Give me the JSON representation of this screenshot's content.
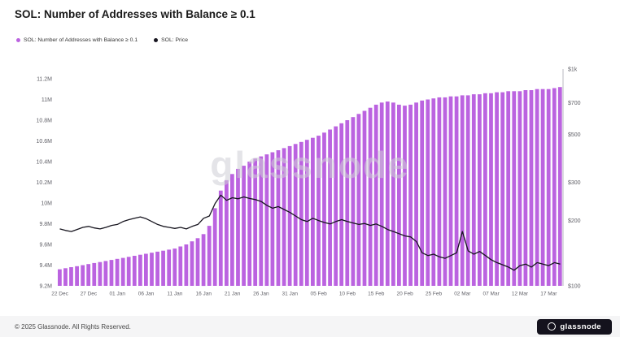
{
  "page": {
    "title": "SOL: Number of Addresses with Balance ≥ 0.1",
    "watermark": "glassnode",
    "footer_copyright": "© 2025 Glassnode. All Rights Reserved.",
    "footer_brand": "glassnode"
  },
  "legend": {
    "items": [
      {
        "label": "SOL: Number of Addresses with Balance ≥ 0.1",
        "color": "#bb63e0"
      },
      {
        "label": "SOL: Price",
        "color": "#17151f"
      }
    ]
  },
  "colors": {
    "bar": "#bb63e0",
    "line": "#17151f",
    "axis_text": "#5f5f66",
    "right_axis_line": "#b9b9c0",
    "watermark": "#cfcfd6",
    "footer_bg": "#f5f5f6",
    "badge_bg": "#14121d"
  },
  "chart_data": {
    "type": "bar+line",
    "title": "SOL: Number of Addresses with Balance ≥ 0.1",
    "x_ticks": [
      "22 Dec",
      "27 Dec",
      "01 Jan",
      "06 Jan",
      "11 Jan",
      "16 Jan",
      "21 Jan",
      "26 Jan",
      "31 Jan",
      "05 Feb",
      "10 Feb",
      "15 Feb",
      "20 Feb",
      "25 Feb",
      "02 Mar",
      "07 Mar",
      "12 Mar",
      "17 Mar"
    ],
    "x_tick_every": 5,
    "left_axis": {
      "min": 9.2,
      "max": 11.2,
      "unit": "M",
      "scale": "linear",
      "ticks": [
        {
          "label": "9.2M",
          "value": 9.2
        },
        {
          "label": "9.4M",
          "value": 9.4
        },
        {
          "label": "9.6M",
          "value": 9.6
        },
        {
          "label": "9.8M",
          "value": 9.8
        },
        {
          "label": "10M",
          "value": 10
        },
        {
          "label": "10.2M",
          "value": 10.2
        },
        {
          "label": "10.4M",
          "value": 10.4
        },
        {
          "label": "10.6M",
          "value": 10.6
        },
        {
          "label": "10.8M",
          "value": 10.8
        },
        {
          "label": "11M",
          "value": 11
        },
        {
          "label": "11.2M",
          "value": 11.2
        }
      ]
    },
    "right_axis": {
      "min": 100,
      "max": 1000,
      "unit": "USD",
      "scale": "log",
      "ticks": [
        {
          "label": "$100",
          "value": 100
        },
        {
          "label": "$200",
          "value": 200
        },
        {
          "label": "$300",
          "value": 300
        },
        {
          "label": "$500",
          "value": 500
        },
        {
          "label": "$700",
          "value": 700
        },
        {
          "label": "$1k",
          "value": 1000
        }
      ]
    },
    "series": [
      {
        "name": "SOL: Number of Addresses with Balance ≥ 0.1",
        "type": "bar",
        "axis": "left",
        "unit": "M",
        "values": [
          9.36,
          9.37,
          9.38,
          9.39,
          9.4,
          9.41,
          9.42,
          9.43,
          9.44,
          9.45,
          9.46,
          9.47,
          9.48,
          9.49,
          9.5,
          9.51,
          9.52,
          9.53,
          9.54,
          9.55,
          9.56,
          9.58,
          9.6,
          9.63,
          9.66,
          9.7,
          9.78,
          9.95,
          10.12,
          10.22,
          10.28,
          10.33,
          10.36,
          10.4,
          10.43,
          10.45,
          10.47,
          10.49,
          10.51,
          10.53,
          10.55,
          10.57,
          10.59,
          10.61,
          10.63,
          10.65,
          10.68,
          10.71,
          10.74,
          10.77,
          10.8,
          10.83,
          10.86,
          10.89,
          10.92,
          10.95,
          10.97,
          10.98,
          10.97,
          10.95,
          10.94,
          10.95,
          10.97,
          10.99,
          11.0,
          11.01,
          11.02,
          11.02,
          11.03,
          11.03,
          11.04,
          11.04,
          11.05,
          11.05,
          11.06,
          11.06,
          11.07,
          11.07,
          11.08,
          11.08,
          11.08,
          11.09,
          11.09,
          11.1,
          11.1,
          11.1,
          11.11,
          11.12
        ]
      },
      {
        "name": "SOL: Price",
        "type": "line",
        "axis": "right",
        "unit": "USD",
        "values": [
          183,
          180,
          178,
          182,
          186,
          188,
          185,
          183,
          186,
          190,
          192,
          198,
          202,
          205,
          208,
          204,
          198,
          192,
          188,
          186,
          184,
          186,
          183,
          188,
          192,
          205,
          210,
          240,
          262,
          248,
          255,
          252,
          257,
          253,
          250,
          245,
          235,
          228,
          232,
          225,
          218,
          210,
          202,
          198,
          205,
          200,
          196,
          193,
          198,
          202,
          198,
          195,
          192,
          194,
          190,
          193,
          188,
          182,
          178,
          174,
          170,
          168,
          160,
          142,
          138,
          140,
          136,
          134,
          138,
          142,
          178,
          145,
          140,
          144,
          138,
          132,
          128,
          125,
          122,
          118,
          124,
          126,
          122,
          128,
          126,
          124,
          128,
          126
        ]
      }
    ]
  }
}
